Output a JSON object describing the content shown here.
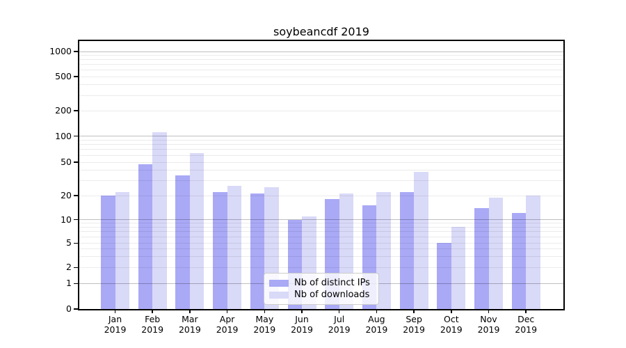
{
  "title": "soybeancdf 2019",
  "chart_data": {
    "type": "bar",
    "title": "soybeancdf 2019",
    "categories": [
      "Jan 2019",
      "Feb 2019",
      "Mar 2019",
      "Apr 2019",
      "May 2019",
      "Jun 2019",
      "Jul 2019",
      "Aug 2019",
      "Sep 2019",
      "Oct 2019",
      "Nov 2019",
      "Dec 2019"
    ],
    "series": [
      {
        "name": "Nb of distinct IPs",
        "color": "#a9a9f6",
        "values": [
          20,
          47,
          35,
          22,
          21,
          10,
          18,
          15,
          22,
          5,
          14,
          12
        ]
      },
      {
        "name": "Nb of downloads",
        "color": "#d9d9f8",
        "values": [
          22,
          112,
          64,
          26,
          25,
          11,
          21,
          22,
          38,
          8,
          19,
          20
        ]
      }
    ],
    "xlabel": "",
    "ylabel": "",
    "y_scale": "log-like (1-2-5 tick sequence with 0 baseline)",
    "y_ticks": [
      1000,
      500,
      200,
      100,
      50,
      20,
      10,
      5,
      2,
      1,
      0
    ],
    "y_tick_labels": [
      "1000",
      "500",
      "200",
      "100",
      "50",
      "20",
      "10",
      "5",
      "2",
      "1",
      "0"
    ],
    "ylim": [
      0,
      1330
    ],
    "grid": true,
    "grid_major_color": "#bfbfbf",
    "grid_minor_color": "#ebebeb",
    "legend_position": "lower center"
  }
}
